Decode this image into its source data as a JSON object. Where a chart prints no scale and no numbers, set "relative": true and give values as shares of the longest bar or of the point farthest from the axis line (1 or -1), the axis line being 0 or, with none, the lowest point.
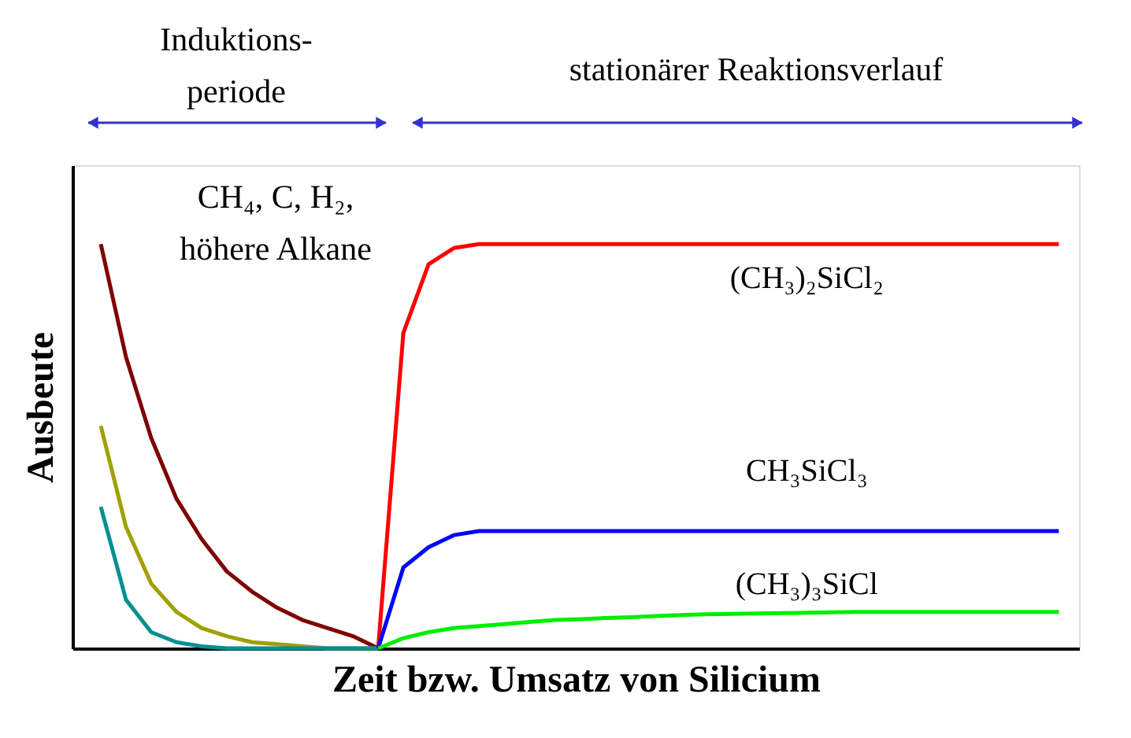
{
  "chart_data": {
    "type": "line",
    "relative": true,
    "xlabel": "Zeit bzw. Umsatz von Silicium",
    "ylabel": "Ausbeute",
    "annotations": [
      "Induktions-\nperiode",
      "stationärer Reaktionsverlauf",
      "CH₄, C, H₂,\nhöhere Alkane"
    ],
    "categories": [
      null,
      null,
      null,
      null,
      null,
      null,
      null,
      null,
      null,
      null,
      null,
      null,
      null,
      null,
      null,
      null,
      null,
      null,
      null,
      null,
      null,
      null,
      null,
      null,
      null,
      null,
      null,
      null,
      null,
      null,
      null,
      null,
      null,
      null,
      null,
      null,
      null,
      null,
      null
    ],
    "series": [
      {
        "color": "#800000",
        "values": [
          1,
          0.72,
          0.52,
          0.37,
          0.27,
          0.19,
          0.14,
          0.1,
          0.07,
          0.05,
          0.03,
          0,
          null,
          null,
          null,
          null,
          null,
          null,
          null,
          null,
          null,
          null,
          null,
          null,
          null,
          null,
          null,
          null,
          null,
          null,
          null,
          null,
          null,
          null,
          null,
          null,
          null,
          null,
          null
        ]
      },
      {
        "color": "#a0a000",
        "values": [
          0.55,
          0.3,
          0.16,
          0.09,
          0.05,
          0.03,
          0.015,
          0.01,
          0.005,
          0,
          0,
          0,
          null,
          null,
          null,
          null,
          null,
          null,
          null,
          null,
          null,
          null,
          null,
          null,
          null,
          null,
          null,
          null,
          null,
          null,
          null,
          null,
          null,
          null,
          null,
          null,
          null,
          null,
          null
        ]
      },
      {
        "color": "#009090",
        "values": [
          0.35,
          0.12,
          0.04,
          0.015,
          0.005,
          0,
          0,
          0,
          0,
          0,
          0,
          0,
          null,
          null,
          null,
          null,
          null,
          null,
          null,
          null,
          null,
          null,
          null,
          null,
          null,
          null,
          null,
          null,
          null,
          null,
          null,
          null,
          null,
          null,
          null,
          null,
          null,
          null,
          null
        ]
      },
      {
        "name": "(CH₃)₂SiCl₂",
        "color": "#ff0000",
        "values": [
          null,
          null,
          null,
          null,
          null,
          null,
          null,
          null,
          null,
          null,
          null,
          0,
          0.78,
          0.95,
          0.99,
          1,
          1,
          1,
          1,
          1,
          1,
          1,
          1,
          1,
          1,
          1,
          1,
          1,
          1,
          1,
          1,
          1,
          1,
          1,
          1,
          1,
          1,
          1,
          1
        ]
      },
      {
        "name": "CH₃SiCl₃",
        "color": "#0000ff",
        "values": [
          null,
          null,
          null,
          null,
          null,
          null,
          null,
          null,
          null,
          null,
          null,
          0,
          0.2,
          0.25,
          0.28,
          0.29,
          0.29,
          0.29,
          0.29,
          0.29,
          0.29,
          0.29,
          0.29,
          0.29,
          0.29,
          0.29,
          0.29,
          0.29,
          0.29,
          0.29,
          0.29,
          0.29,
          0.29,
          0.29,
          0.29,
          0.29,
          0.29,
          0.29,
          0.29
        ]
      },
      {
        "name": "(CH₃)₃SiCl",
        "color": "#00ee00",
        "values": [
          null,
          null,
          null,
          null,
          null,
          null,
          null,
          null,
          null,
          null,
          null,
          0,
          0.025,
          0.04,
          0.05,
          0.055,
          0.06,
          0.065,
          0.07,
          0.072,
          0.075,
          0.077,
          0.08,
          0.082,
          0.084,
          0.085,
          0.086,
          0.087,
          0.088,
          0.089,
          0.09,
          0.09,
          0.09,
          0.09,
          0.09,
          0.09,
          0.09,
          0.09,
          0.09
        ]
      }
    ]
  }
}
